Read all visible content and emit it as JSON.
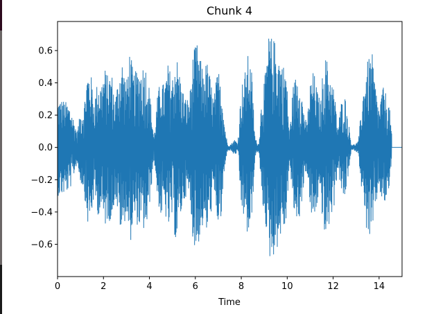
{
  "chart_data": {
    "type": "line",
    "title": "Chunk 4",
    "xlabel": "Time",
    "ylabel": "",
    "xlim": [
      0,
      15
    ],
    "ylim": [
      -0.8,
      0.78
    ],
    "xticks": [
      0,
      2,
      4,
      6,
      8,
      10,
      12,
      14
    ],
    "xtick_labels": [
      "0",
      "2",
      "4",
      "6",
      "8",
      "10",
      "12",
      "14"
    ],
    "yticks": [
      -0.6,
      -0.4,
      -0.2,
      0.0,
      0.2,
      0.4,
      0.6
    ],
    "ytick_labels": [
      "−0.6",
      "−0.4",
      "−0.2",
      "0.0",
      "0.2",
      "0.4",
      "0.6"
    ],
    "grid": false,
    "series": [
      {
        "color": "#1f77b4",
        "envelope": {
          "t": [
            0.0,
            0.2,
            0.4,
            0.55,
            0.7,
            0.85,
            1.0,
            1.15,
            1.3,
            1.45,
            1.6,
            1.75,
            1.9,
            2.05,
            2.2,
            2.35,
            2.5,
            2.65,
            2.8,
            3.0,
            3.15,
            3.3,
            3.45,
            3.6,
            3.75,
            3.9,
            4.05,
            4.2,
            4.35,
            4.5,
            4.65,
            4.8,
            5.0,
            5.15,
            5.3,
            5.45,
            5.6,
            5.75,
            5.9,
            6.05,
            6.2,
            6.35,
            6.5,
            6.65,
            6.8,
            6.95,
            7.1,
            7.25,
            7.4,
            7.55,
            7.7,
            7.85,
            8.0,
            8.15,
            8.3,
            8.45,
            8.6,
            8.75,
            8.9,
            9.05,
            9.2,
            9.35,
            9.5,
            9.65,
            9.8,
            9.95,
            10.1,
            10.25,
            10.4,
            10.55,
            10.7,
            10.85,
            11.0,
            11.15,
            11.3,
            11.45,
            11.6,
            11.75,
            11.9,
            12.05,
            12.2,
            12.35,
            12.5,
            12.65,
            12.8,
            12.95,
            13.1,
            13.25,
            13.4,
            13.55,
            13.7,
            13.85,
            14.0,
            14.15,
            14.3,
            14.45,
            14.6,
            15.0
          ],
          "amp": [
            0.3,
            0.3,
            0.28,
            0.26,
            0.18,
            0.1,
            0.22,
            0.26,
            0.48,
            0.46,
            0.3,
            0.42,
            0.4,
            0.5,
            0.44,
            0.48,
            0.3,
            0.44,
            0.56,
            0.4,
            0.62,
            0.46,
            0.48,
            0.5,
            0.52,
            0.5,
            0.3,
            0.06,
            0.32,
            0.44,
            0.38,
            0.52,
            0.44,
            0.6,
            0.48,
            0.36,
            0.3,
            0.32,
            0.58,
            0.66,
            0.56,
            0.48,
            0.54,
            0.44,
            0.3,
            0.46,
            0.5,
            0.18,
            0.02,
            0.02,
            0.05,
            0.03,
            0.38,
            0.46,
            0.58,
            0.48,
            0.06,
            0.02,
            0.34,
            0.46,
            0.7,
            0.68,
            0.66,
            0.58,
            0.52,
            0.5,
            0.08,
            0.38,
            0.46,
            0.44,
            0.26,
            0.14,
            0.4,
            0.48,
            0.36,
            0.28,
            0.58,
            0.54,
            0.44,
            0.36,
            0.12,
            0.28,
            0.34,
            0.18,
            0.02,
            0.02,
            0.04,
            0.28,
            0.48,
            0.56,
            0.58,
            0.38,
            0.24,
            0.38,
            0.34,
            0.26,
            0.004,
            0.0
          ]
        }
      }
    ]
  }
}
